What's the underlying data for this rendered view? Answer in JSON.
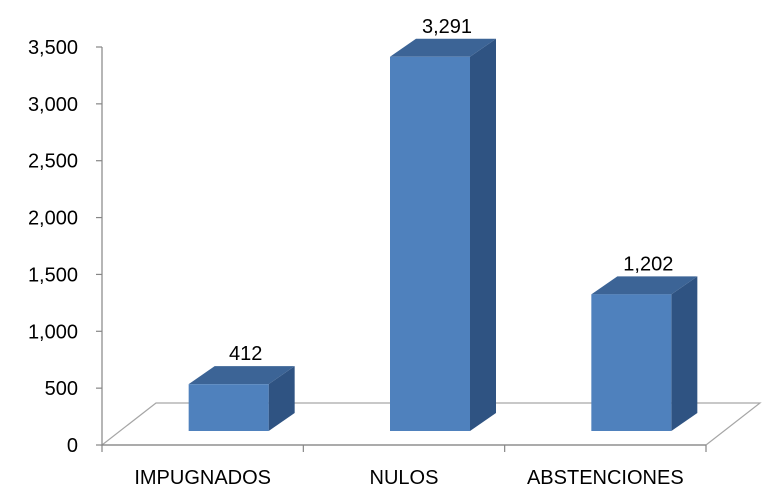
{
  "chart_data": {
    "type": "bar",
    "style": "3d-column",
    "title": "",
    "xlabel": "",
    "ylabel": "",
    "categories": [
      "IMPUGNADOS",
      "NULOS",
      "ABSTENCIONES"
    ],
    "values": [
      412,
      3291,
      1202
    ],
    "data_labels": [
      "412",
      "3,291",
      "1,202"
    ],
    "ylim": [
      0,
      3500
    ],
    "yticks": [
      0,
      500,
      1000,
      1500,
      2000,
      2500,
      3000,
      3500
    ],
    "ytick_labels": [
      "0",
      "500",
      "1,000",
      "1,500",
      "2,000",
      "2,500",
      "3,000",
      "3,500"
    ],
    "grid": false,
    "legend": "none",
    "colors": {
      "bar_front": "#4f81bd",
      "bar_top": "#3c6496",
      "bar_side": "#2f5382",
      "axis": "#868686",
      "floor_line": "#a6a6a6"
    }
  }
}
